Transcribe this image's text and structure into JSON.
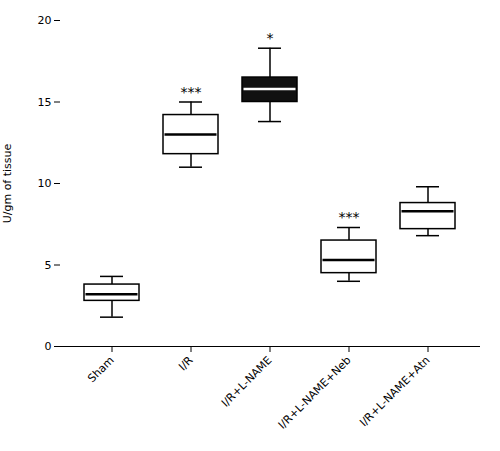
{
  "chart_data": {
    "type": "box",
    "categories": [
      "Sham",
      "I/R",
      "I/R+L-NAME",
      "I/R+L-NAME+Neb",
      "I/R+L-NAME+Atn"
    ],
    "boxes": [
      {
        "median": 3.2,
        "q1": 2.8,
        "q3": 3.8,
        "whislo": 1.8,
        "whishi": 4.3
      },
      {
        "median": 13.0,
        "q1": 11.8,
        "q3": 14.2,
        "whislo": 11.0,
        "whishi": 15.0
      },
      {
        "median": 15.8,
        "q1": 15.0,
        "q3": 16.5,
        "whislo": 13.8,
        "whishi": 18.3
      },
      {
        "median": 5.3,
        "q1": 4.5,
        "q3": 6.5,
        "whislo": 4.0,
        "whishi": 7.3
      },
      {
        "median": 8.3,
        "q1": 7.2,
        "q3": 8.8,
        "whislo": 6.8,
        "whishi": 9.8
      }
    ],
    "colors": [
      "#ffffff",
      "#ffffff",
      "#111111",
      "#ffffff",
      "#ffffff"
    ],
    "annotations": [
      {
        "text": "***",
        "x": "I/R",
        "y": 15.2
      },
      {
        "text": "*",
        "x": "I/R+L-NAME",
        "y": 18.5
      },
      {
        "text": "***",
        "x": "I/R+L-NAME+Neb",
        "y": 7.5
      }
    ],
    "ylabel": "U/gm of tissue",
    "ylim": [
      0,
      20
    ],
    "yticks": [
      0,
      5,
      10,
      15,
      20
    ],
    "grid": false
  }
}
